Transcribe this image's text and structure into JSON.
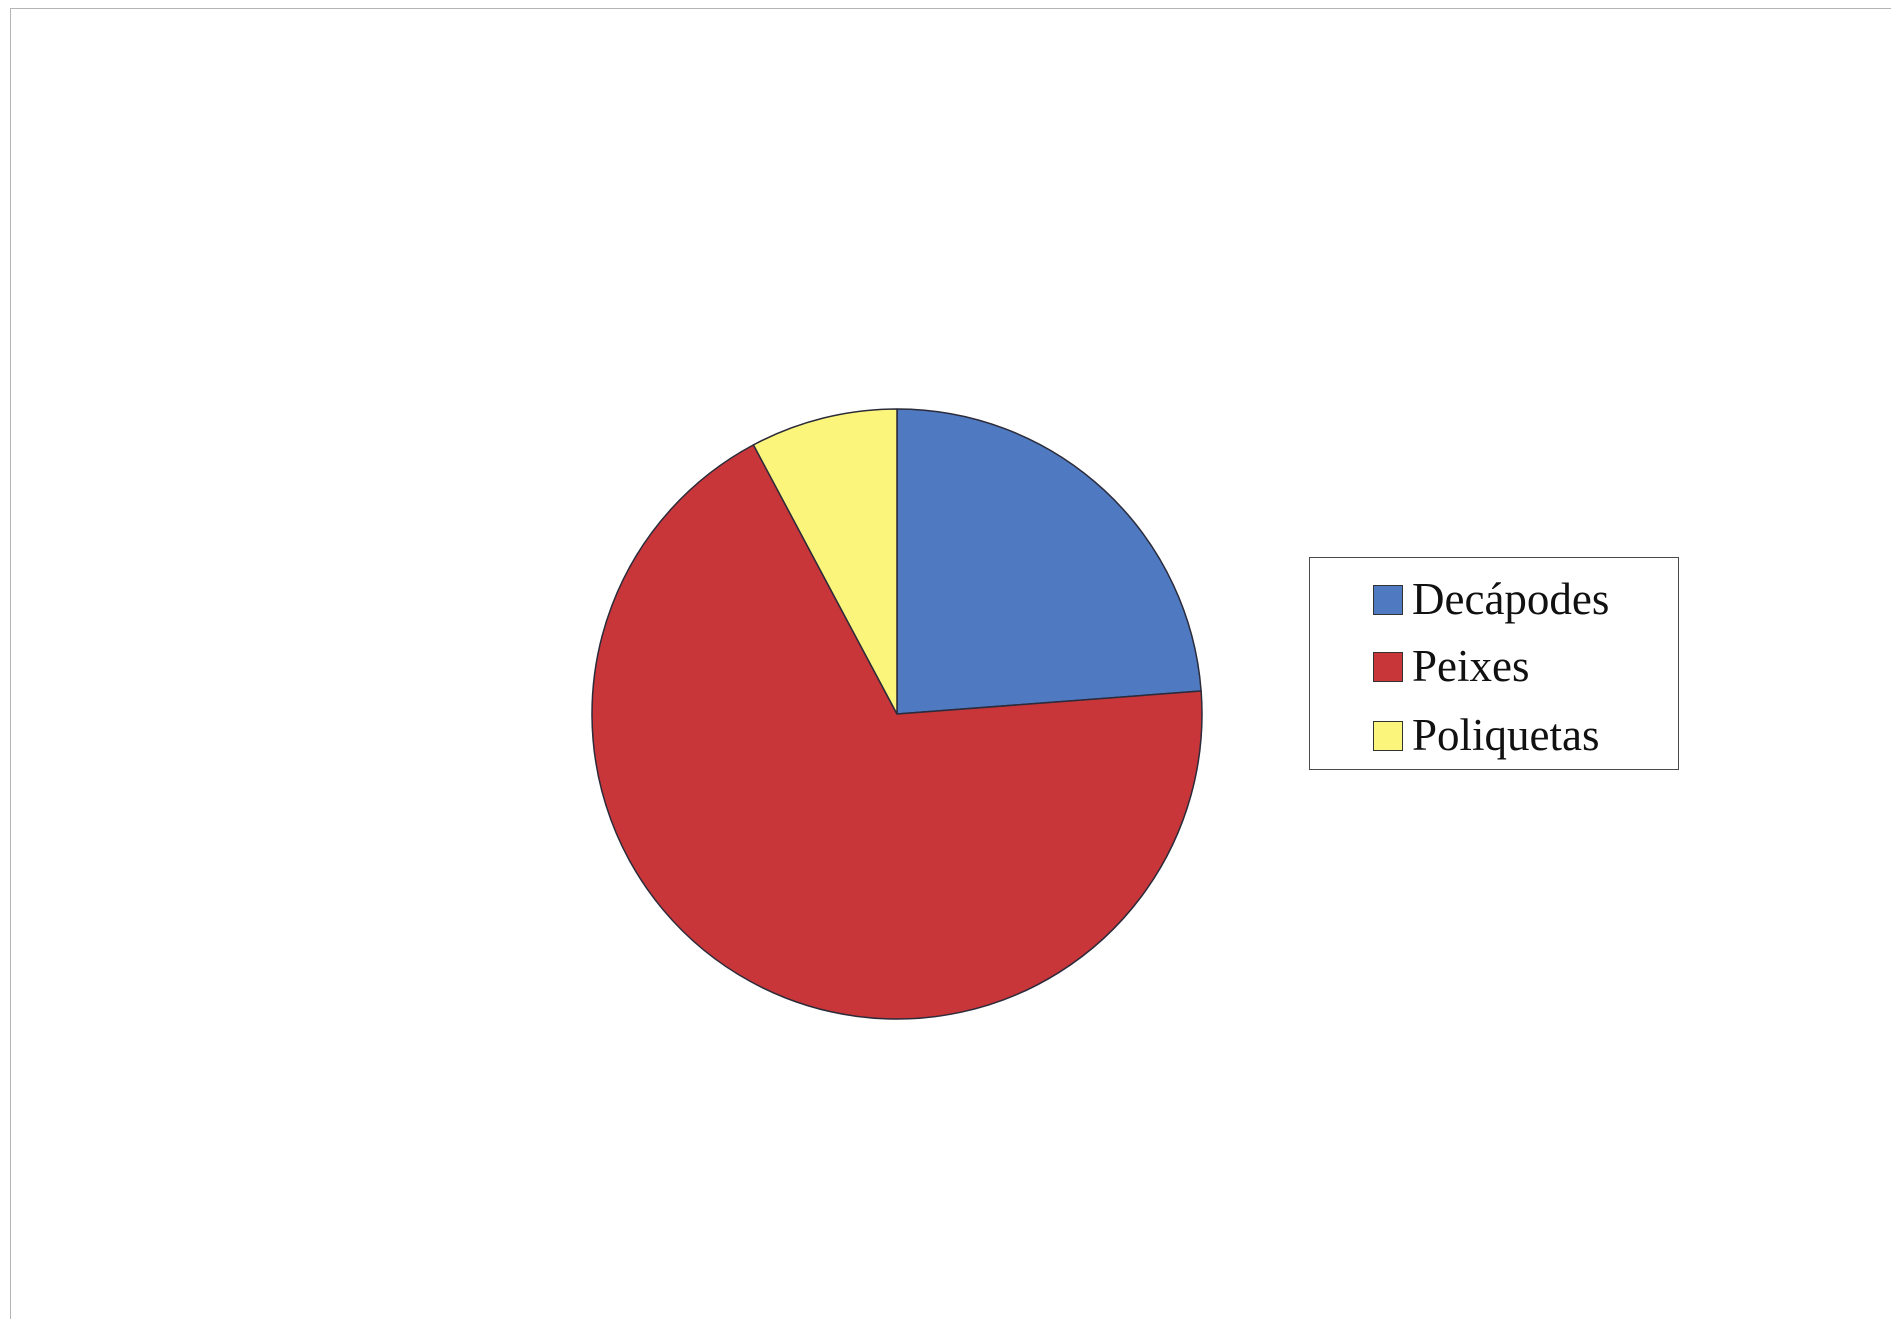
{
  "chart_data": {
    "type": "pie",
    "categories": [
      "Decápodes",
      "Peixes",
      "Poliquetas"
    ],
    "values": [
      23.8,
      68.4,
      7.8
    ],
    "colors": [
      "#4f79c1",
      "#c8363a",
      "#fbf57b"
    ],
    "start_angle_deg": 0,
    "direction": "clockwise",
    "legend": {
      "placement": "right",
      "entries": [
        "Decápodes",
        "Peixes",
        "Poliquetas"
      ]
    },
    "title": "",
    "grid": false
  },
  "legend_items": [
    {
      "label": "Decápodes",
      "color": "#4f79c1"
    },
    {
      "label": "Peixes",
      "color": "#c8363a"
    },
    {
      "label": "Poliquetas",
      "color": "#fbf57b"
    }
  ]
}
